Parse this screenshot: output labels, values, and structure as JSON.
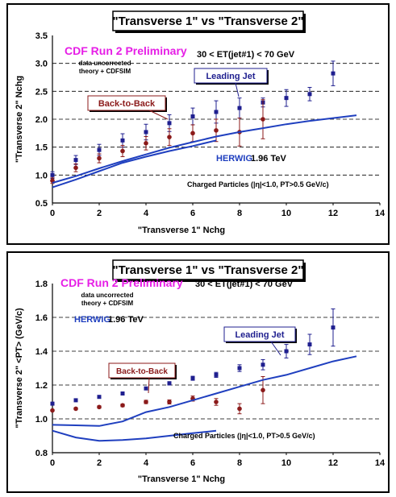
{
  "chart_data": [
    {
      "type": "scatter",
      "title": "\"Transverse 1\" vs \"Transverse 2\"",
      "xlabel": "\"Transverse 1\" Nchg",
      "ylabel": "\"Transverse 2\" Nchg",
      "xlim": [
        0,
        14
      ],
      "ylim": [
        0.5,
        3.5
      ],
      "xticks": [
        0,
        2,
        4,
        6,
        8,
        10,
        12,
        14
      ],
      "yticks": [
        "0.5",
        "1.0",
        "1.5",
        "2.0",
        "2.5",
        "3.0",
        "3.5"
      ],
      "grid": "horizontal dashed",
      "annotations": {
        "run_label": "CDF Run 2 Preliminary",
        "et_cut": "30 < ET(jet#1) < 70 GeV",
        "note1": "data uncorrected",
        "note2": "theory + CDFSIM",
        "generator": "HERWIG",
        "energy": "1.96 TeV",
        "cuts": "Charged Particles (|η|<1.0, PT>0.5 GeV/c)",
        "leading_label": "Leading Jet",
        "b2b_label": "Back-to-Back"
      },
      "series": [
        {
          "name": "Leading Jet",
          "color": "#1f1f8f",
          "marker": "square",
          "x": [
            0,
            1,
            2,
            3,
            4,
            5,
            6,
            7,
            8,
            9,
            10,
            11,
            12
          ],
          "y": [
            1.0,
            1.27,
            1.45,
            1.62,
            1.77,
            1.93,
            2.05,
            2.13,
            2.2,
            2.3,
            2.38,
            2.45,
            2.82
          ],
          "err": [
            0.06,
            0.08,
            0.1,
            0.12,
            0.14,
            0.15,
            0.15,
            0.2,
            0.18,
            0.08,
            0.15,
            0.12,
            0.22
          ]
        },
        {
          "name": "Back-to-Back",
          "color": "#8b1a1a",
          "marker": "circle",
          "x": [
            0,
            1,
            2,
            3,
            4,
            5,
            6,
            7,
            8,
            9
          ],
          "y": [
            0.9,
            1.13,
            1.3,
            1.43,
            1.57,
            1.68,
            1.75,
            1.8,
            1.77,
            2.0
          ],
          "err": [
            0.05,
            0.07,
            0.08,
            0.1,
            0.12,
            0.15,
            0.15,
            0.2,
            0.25,
            0.35
          ]
        },
        {
          "name": "HERWIG Leading Jet",
          "color": "#1f3fbf",
          "marker": "line",
          "x": [
            0,
            1,
            2,
            3,
            4,
            5,
            6,
            7,
            8,
            9,
            10,
            11,
            12,
            13
          ],
          "y": [
            0.86,
            0.98,
            1.12,
            1.25,
            1.37,
            1.49,
            1.59,
            1.69,
            1.77,
            1.84,
            1.91,
            1.97,
            2.02,
            2.07
          ]
        },
        {
          "name": "HERWIG Back-to-Back",
          "color": "#1f3fbf",
          "marker": "line",
          "x": [
            0,
            1,
            2,
            3,
            4,
            5,
            6,
            7
          ],
          "y": [
            0.78,
            0.92,
            1.07,
            1.22,
            1.33,
            1.43,
            1.52,
            1.62
          ]
        }
      ]
    },
    {
      "type": "scatter",
      "title": "\"Transverse 1\" vs \"Transverse 2\"",
      "xlabel": "\"Transverse 1\" Nchg",
      "ylabel": "\"Transverse 2\" <PT> (GeV/c)",
      "xlim": [
        0,
        14
      ],
      "ylim": [
        0.8,
        1.8
      ],
      "xticks": [
        0,
        2,
        4,
        6,
        8,
        10,
        12,
        14
      ],
      "yticks": [
        "0.8",
        "1.0",
        "1.2",
        "1.4",
        "1.6",
        "1.8"
      ],
      "grid": "horizontal dashed",
      "annotations": {
        "run_label": "CDF Run 2 Preliminary",
        "et_cut": "30 < ET(jet#1) < 70 GeV",
        "note1": "data uncorrected",
        "note2": "theory + CDFSIM",
        "generator": "HERWIG",
        "energy": "1.96 TeV",
        "cuts": "Charged Particles (|η|<1.0, PT>0.5 GeV/c)",
        "leading_label": "Leading Jet",
        "b2b_label": "Back-to-Back"
      },
      "series": [
        {
          "name": "Leading Jet",
          "color": "#1f1f8f",
          "marker": "square",
          "x": [
            0,
            1,
            2,
            3,
            4,
            5,
            6,
            7,
            8,
            9,
            10,
            11,
            12
          ],
          "y": [
            1.09,
            1.11,
            1.13,
            1.15,
            1.18,
            1.21,
            1.24,
            1.26,
            1.3,
            1.32,
            1.4,
            1.44,
            1.54
          ],
          "err": [
            0.005,
            0.005,
            0.006,
            0.007,
            0.008,
            0.01,
            0.012,
            0.015,
            0.02,
            0.03,
            0.04,
            0.06,
            0.11
          ]
        },
        {
          "name": "Back-to-Back",
          "color": "#8b1a1a",
          "marker": "circle",
          "x": [
            0,
            1,
            2,
            3,
            4,
            5,
            6,
            7,
            8,
            9
          ],
          "y": [
            1.05,
            1.06,
            1.07,
            1.08,
            1.1,
            1.1,
            1.12,
            1.1,
            1.06,
            1.17
          ],
          "err": [
            0.005,
            0.006,
            0.007,
            0.008,
            0.01,
            0.012,
            0.015,
            0.02,
            0.03,
            0.08
          ]
        },
        {
          "name": "HERWIG Leading Jet",
          "color": "#1f3fbf",
          "marker": "line",
          "x": [
            0,
            1,
            2,
            3,
            4,
            5,
            6,
            7,
            8,
            9,
            10,
            11,
            12,
            13
          ],
          "y": [
            0.965,
            0.962,
            0.958,
            0.985,
            1.04,
            1.07,
            1.11,
            1.15,
            1.19,
            1.23,
            1.26,
            1.3,
            1.34,
            1.37
          ]
        },
        {
          "name": "HERWIG Back-to-Back",
          "color": "#1f3fbf",
          "marker": "line",
          "x": [
            0,
            1,
            2,
            3,
            4,
            5,
            6,
            7
          ],
          "y": [
            0.93,
            0.89,
            0.87,
            0.875,
            0.885,
            0.9,
            0.915,
            0.93
          ]
        }
      ]
    }
  ]
}
